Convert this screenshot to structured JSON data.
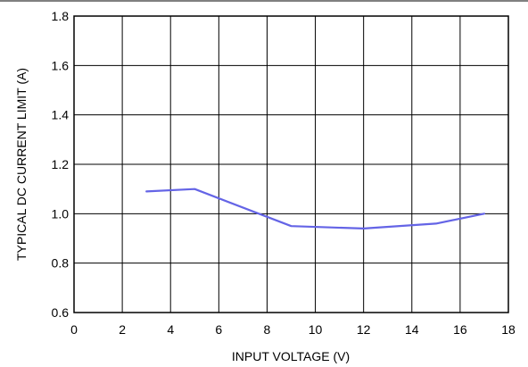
{
  "chart_data": {
    "type": "line",
    "title": "",
    "xlabel": "INPUT VOLTAGE (V)",
    "ylabel": "TYPICAL DC CURRENT LIMIT (A)",
    "xlim": [
      0,
      18
    ],
    "ylim": [
      0.6,
      1.8
    ],
    "x_ticks": [
      "0",
      "2",
      "4",
      "6",
      "8",
      "10",
      "12",
      "14",
      "16",
      "18"
    ],
    "y_ticks": [
      "0.6",
      "0.8",
      "1.0",
      "1.2",
      "1.4",
      "1.6",
      "1.8"
    ],
    "grid": true,
    "series": [
      {
        "color": "#6464e6",
        "x": [
          3,
          5,
          9,
          12,
          15,
          17
        ],
        "y": [
          1.09,
          1.1,
          0.95,
          0.94,
          0.96,
          1.0
        ]
      }
    ]
  }
}
